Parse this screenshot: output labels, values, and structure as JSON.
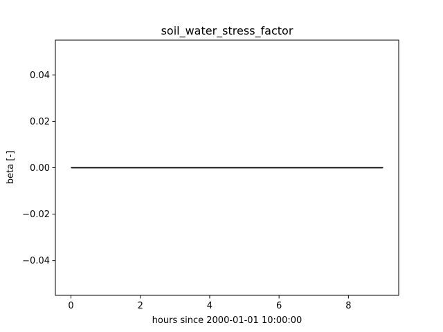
{
  "chart_data": {
    "type": "line",
    "title": "soil_water_stress_factor",
    "xlabel": "hours since 2000-01-01 10:00:00",
    "ylabel": "beta [-]",
    "xlim": [
      -0.45,
      9.45
    ],
    "ylim": [
      -0.055,
      0.055
    ],
    "xticks": [
      0,
      2,
      4,
      6,
      8
    ],
    "xtick_labels": [
      "0",
      "2",
      "4",
      "6",
      "8"
    ],
    "yticks": [
      -0.04,
      -0.02,
      0.0,
      0.02,
      0.04
    ],
    "ytick_labels": [
      "−0.04",
      "−0.02",
      "0.00",
      "0.02",
      "0.04"
    ],
    "grid": false,
    "series": [
      {
        "color": "#000000",
        "x": [
          0,
          1,
          2,
          3,
          4,
          5,
          6,
          7,
          8,
          9
        ],
        "y": [
          0,
          0,
          0,
          0,
          0,
          0,
          0,
          0,
          0,
          0
        ]
      }
    ]
  }
}
